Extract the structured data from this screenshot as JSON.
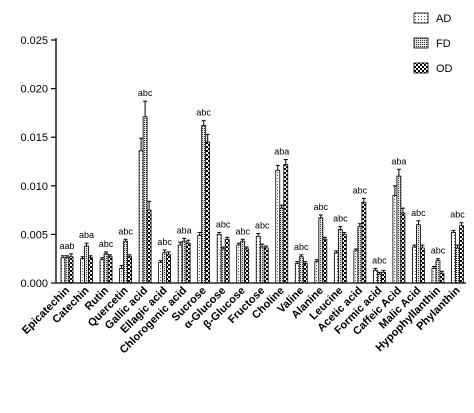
{
  "chart_data": {
    "type": "bar",
    "title": "",
    "xlabel": "",
    "ylabel": "",
    "ylim": [
      0,
      0.025
    ],
    "yticks": [
      "0.000",
      "0.005",
      "0.010",
      "0.015",
      "0.020",
      "0.025"
    ],
    "grid": false,
    "legend_position": "top-right",
    "error_bars": true,
    "categories": [
      "Epicatechin",
      "Catechin",
      "Rutin",
      "Quercetin",
      "Gallic acid",
      "Ellagic acid",
      "Chlorogenic acid",
      "Sucrose",
      "α-Glucose",
      "β-Glucose",
      "Fructose",
      "Choline",
      "Valine",
      "Alanine",
      "Leucine",
      "Acetic acid",
      "Formic acid",
      "Caffeic Acid",
      "Malic Acid",
      "Hypophyllanthin",
      "Phylanthin"
    ],
    "significance": [
      "aab",
      "aba",
      "abc",
      "abc",
      "abc",
      "abc",
      "aba",
      "abc",
      "abc",
      "abc",
      "abc",
      "aba",
      "abc",
      "abc",
      "abc",
      "abc",
      "abc",
      "aba",
      "abc",
      "abc",
      "abc"
    ],
    "series": [
      {
        "name": "AD",
        "pattern": "dots",
        "values": [
          0.0026,
          0.0025,
          0.0024,
          0.0015,
          0.0136,
          0.0021,
          0.0039,
          0.0049,
          0.005,
          0.0039,
          0.0048,
          0.0116,
          0.002,
          0.0022,
          0.0031,
          0.0033,
          0.0013,
          0.009,
          0.0037,
          0.0015,
          0.0052
        ],
        "errors": [
          0.0002,
          0.0002,
          0.0002,
          0.0003,
          0.0013,
          0.0002,
          0.0003,
          0.0003,
          0.0002,
          0.0002,
          0.0003,
          0.0005,
          0.0002,
          0.0002,
          0.0002,
          0.0002,
          0.0002,
          0.001,
          0.0002,
          0.0002,
          0.0002
        ]
      },
      {
        "name": "FD",
        "pattern": "grid",
        "values": [
          0.0026,
          0.0038,
          0.003,
          0.0043,
          0.0171,
          0.0031,
          0.0043,
          0.0162,
          0.0035,
          0.0043,
          0.0037,
          0.0077,
          0.0027,
          0.0067,
          0.0055,
          0.0058,
          0.0009,
          0.011,
          0.006,
          0.0023,
          0.0036
        ],
        "errors": [
          0.0002,
          0.0003,
          0.0002,
          0.0002,
          0.0016,
          0.0003,
          0.0003,
          0.0005,
          0.0002,
          0.0002,
          0.0003,
          0.0003,
          0.0002,
          0.0003,
          0.0003,
          0.0003,
          0.0002,
          0.0007,
          0.0004,
          0.0002,
          0.0003
        ]
      },
      {
        "name": "OD",
        "pattern": "checker",
        "values": [
          0.0027,
          0.0026,
          0.0027,
          0.0027,
          0.0075,
          0.0029,
          0.0041,
          0.0145,
          0.0045,
          0.0035,
          0.0036,
          0.0122,
          0.002,
          0.0045,
          0.005,
          0.0083,
          0.0011,
          0.0072,
          0.0036,
          0.001,
          0.0059
        ],
        "errors": [
          0.0003,
          0.0002,
          0.0002,
          0.0002,
          0.0009,
          0.0003,
          0.0003,
          0.0008,
          0.0002,
          0.0002,
          0.0002,
          0.0005,
          0.0002,
          0.0002,
          0.0002,
          0.0004,
          0.0002,
          0.0005,
          0.0003,
          0.0002,
          0.0003
        ]
      }
    ]
  }
}
